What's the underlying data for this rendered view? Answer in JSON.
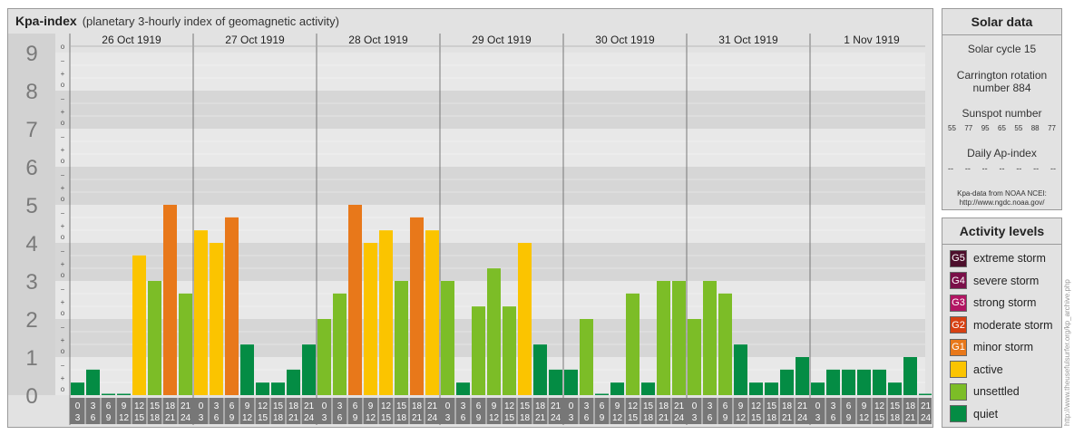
{
  "chart_title": "Kpa-index",
  "chart_subtitle": "(planetary 3-hourly index of geomagnetic activity)",
  "chart_data": {
    "type": "bar",
    "title": "Kpa-index",
    "subtitle": "(planetary 3-hourly index of geomagnetic activity)",
    "days": [
      "26 Oct 1919",
      "27 Oct 1919",
      "28 Oct 1919",
      "29 Oct 1919",
      "30 Oct 1919",
      "31 Oct 1919",
      "1 Nov 1919"
    ],
    "interval_start": [
      "0",
      "3",
      "6",
      "9",
      "12",
      "15",
      "18",
      "21"
    ],
    "interval_end": [
      "3",
      "6",
      "9",
      "12",
      "15",
      "18",
      "21",
      "24"
    ],
    "y_ticks": [
      "0",
      "1",
      "2",
      "3",
      "4",
      "5",
      "6",
      "7",
      "8",
      "9"
    ],
    "y_minor_labels": [
      "o",
      "+",
      "−"
    ],
    "ylim": [
      0,
      9.33
    ],
    "values": [
      [
        0.33,
        0.67,
        0,
        0,
        3.67,
        3,
        5,
        2.67
      ],
      [
        4.33,
        4,
        4.67,
        1.33,
        0.33,
        0.33,
        0.67,
        1.33
      ],
      [
        2,
        2.67,
        5,
        4,
        4.33,
        3,
        4.67,
        4.33
      ],
      [
        3,
        0.33,
        2.33,
        3.33,
        2.33,
        4,
        1.33,
        0.67
      ],
      [
        0.67,
        2,
        0,
        0.33,
        2.67,
        0.33,
        3,
        3
      ],
      [
        2,
        3,
        2.67,
        1.33,
        0.33,
        0.33,
        0.67,
        1
      ],
      [
        0.33,
        0.67,
        0.67,
        0.67,
        0.67,
        0.33,
        1,
        0
      ]
    ]
  },
  "solar_data": {
    "heading": "Solar data",
    "solar_cycle": "Solar cycle 15",
    "carrington_line1": "Carrington rotation",
    "carrington_line2": "number 884",
    "sunspot_heading": "Sunspot number",
    "sunspot_values": [
      "55",
      "77",
      "95",
      "65",
      "55",
      "88",
      "77"
    ],
    "ap_heading": "Daily Ap-index",
    "ap_values": [
      "--",
      "--",
      "--",
      "--",
      "--",
      "--",
      "--"
    ],
    "source_line1": "Kpa-data from NOAA NCEI:",
    "source_line2": "http://www.ngdc.noaa.gov/"
  },
  "activity_levels": {
    "heading": "Activity levels",
    "items": [
      {
        "badge": "G5",
        "label": "extreme storm",
        "color": "#4d0f2c"
      },
      {
        "badge": "G4",
        "label": "severe storm",
        "color": "#7a1049"
      },
      {
        "badge": "G3",
        "label": "strong storm",
        "color": "#b21563"
      },
      {
        "badge": "G2",
        "label": "moderate storm",
        "color": "#d64012"
      },
      {
        "badge": "G1",
        "label": "minor storm",
        "color": "#e8781a"
      },
      {
        "badge": "",
        "label": "active",
        "color": "#fbc400"
      },
      {
        "badge": "",
        "label": "unsettled",
        "color": "#7cbd27"
      },
      {
        "badge": "",
        "label": "quiet",
        "color": "#048c44"
      }
    ]
  },
  "credit": "http://www.theusefulsurfer.org/kp_archive.php"
}
